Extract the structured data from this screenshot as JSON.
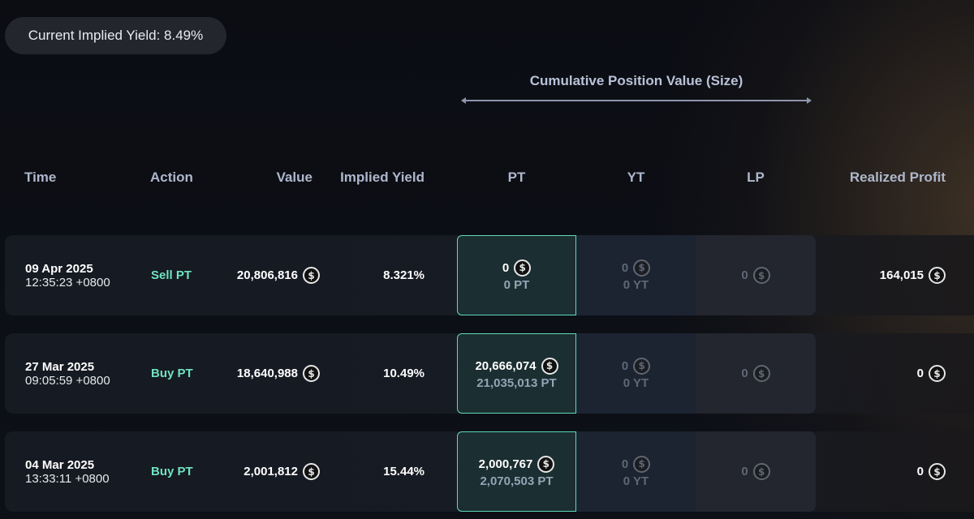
{
  "current_yield": "Current Implied Yield: 8.49%",
  "cumulative_title": "Cumulative Position Value (Size)",
  "headers": {
    "time": "Time",
    "action": "Action",
    "value": "Value",
    "implied_yield": "Implied Yield",
    "pt": "PT",
    "yt": "YT",
    "lp": "LP",
    "realized_profit": "Realized Profit"
  },
  "currency_icon": "usd-coin-icon",
  "colors": {
    "accent_green": "#6fe3c1",
    "pt_border": "#5ed9bd",
    "background": "#0b0d13"
  },
  "rows": [
    {
      "date": "09 Apr 2025",
      "time": "12:35:23 +0800",
      "action": "Sell PT",
      "value": "20,806,816",
      "implied_yield": "8.321%",
      "pt_value": "0",
      "pt_size": "0 PT",
      "yt_value": "0",
      "yt_size": "0 YT",
      "lp_value": "0",
      "realized_profit": "164,015"
    },
    {
      "date": "27 Mar 2025",
      "time": "09:05:59 +0800",
      "action": "Buy PT",
      "value": "18,640,988",
      "implied_yield": "10.49%",
      "pt_value": "20,666,074",
      "pt_size": "21,035,013 PT",
      "yt_value": "0",
      "yt_size": "0 YT",
      "lp_value": "0",
      "realized_profit": "0"
    },
    {
      "date": "04 Mar 2025",
      "time": "13:33:11 +0800",
      "action": "Buy PT",
      "value": "2,001,812",
      "implied_yield": "15.44%",
      "pt_value": "2,000,767",
      "pt_size": "2,070,503 PT",
      "yt_value": "0",
      "yt_size": "0 YT",
      "lp_value": "0",
      "realized_profit": "0"
    }
  ]
}
